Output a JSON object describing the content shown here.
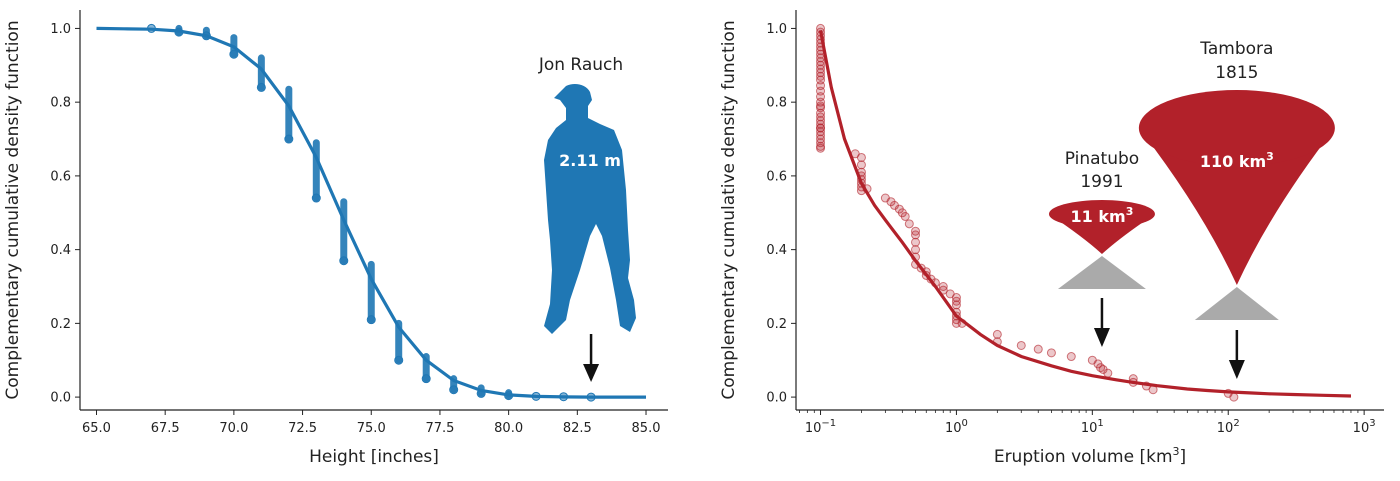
{
  "chart_data": [
    {
      "type": "scatter",
      "xlabel": "Height [inches]",
      "ylabel": "Complementary cumulative density function",
      "xlim": [
        64.4,
        85.8
      ],
      "ylim": [
        -0.035,
        1.05
      ],
      "x_ticks": [
        65,
        67.5,
        70,
        72.5,
        75,
        77.5,
        80,
        82.5,
        85
      ],
      "x_tick_labels": [
        "65.0",
        "67.5",
        "70.0",
        "72.5",
        "75.0",
        "77.5",
        "80.0",
        "82.5",
        "85.0"
      ],
      "y_ticks": [
        0,
        0.2,
        0.4,
        0.6,
        0.8,
        1.0
      ],
      "y_tick_labels": [
        "0.0",
        "0.2",
        "0.4",
        "0.6",
        "0.8",
        "1.0"
      ],
      "color": "#1f77b4",
      "series": [
        {
          "kind": "points",
          "x": [
            67,
            68,
            69,
            70,
            71,
            72,
            73,
            74,
            75,
            76,
            77,
            78,
            79,
            80,
            81,
            82,
            83
          ],
          "y_top": [
            1.0,
            1.0,
            0.995,
            0.975,
            0.92,
            0.835,
            0.69,
            0.53,
            0.36,
            0.2,
            0.11,
            0.05,
            0.025,
            0.012,
            0.006,
            0.003,
            0.0
          ],
          "y_bottom": [
            1.0,
            0.99,
            0.98,
            0.93,
            0.84,
            0.7,
            0.54,
            0.37,
            0.21,
            0.1,
            0.05,
            0.02,
            0.01,
            0.004,
            0.002,
            0.001,
            0.0
          ]
        },
        {
          "kind": "fit_curve",
          "x": [
            65,
            66,
            67,
            68,
            69,
            70,
            71,
            72,
            73,
            74,
            75,
            76,
            77,
            78,
            79,
            80,
            81,
            82,
            83,
            84,
            85
          ],
          "y": [
            1.0,
            0.999,
            0.998,
            0.993,
            0.98,
            0.95,
            0.89,
            0.79,
            0.65,
            0.48,
            0.32,
            0.19,
            0.1,
            0.045,
            0.018,
            0.006,
            0.002,
            0.0005,
            0.0001,
            0.0,
            0.0
          ]
        }
      ],
      "annotations": [
        {
          "text": "Jon Rauch",
          "kind": "silhouette-label"
        },
        {
          "text": "2.11 m",
          "kind": "silhouette-inner"
        },
        {
          "kind": "arrow",
          "x": 83
        }
      ]
    },
    {
      "type": "scatter",
      "xscale": "log",
      "xlabel": "Eruption volume [km",
      "xlabel_sup": "3",
      "xlabel_end": "]",
      "ylabel": "Complementary cumulative density function",
      "xlim": [
        0.066,
        1400
      ],
      "ylim": [
        -0.035,
        1.05
      ],
      "x_ticks": [
        0.1,
        1,
        10,
        100,
        1000
      ],
      "x_tick_labels": [
        {
          "base": "10",
          "exp": "−1"
        },
        {
          "base": "10",
          "exp": "0"
        },
        {
          "base": "10",
          "exp": "1"
        },
        {
          "base": "10",
          "exp": "2"
        },
        {
          "base": "10",
          "exp": "3"
        }
      ],
      "y_ticks": [
        0,
        0.2,
        0.4,
        0.6,
        0.8,
        1.0
      ],
      "y_tick_labels": [
        "0.0",
        "0.2",
        "0.4",
        "0.6",
        "0.8",
        "1.0"
      ],
      "color": "#b2212a",
      "series": [
        {
          "kind": "points",
          "x": [
            0.1,
            0.1,
            0.1,
            0.1,
            0.1,
            0.1,
            0.1,
            0.1,
            0.1,
            0.1,
            0.1,
            0.1,
            0.1,
            0.1,
            0.1,
            0.1,
            0.1,
            0.1,
            0.1,
            0.1,
            0.1,
            0.1,
            0.1,
            0.1,
            0.1,
            0.1,
            0.1,
            0.1,
            0.1,
            0.1,
            0.1,
            0.1,
            0.1,
            0.18,
            0.2,
            0.2,
            0.2,
            0.2,
            0.2,
            0.2,
            0.2,
            0.2,
            0.22,
            0.3,
            0.33,
            0.35,
            0.38,
            0.4,
            0.42,
            0.45,
            0.5,
            0.5,
            0.5,
            0.5,
            0.5,
            0.5,
            0.55,
            0.6,
            0.6,
            0.65,
            0.7,
            0.8,
            0.8,
            0.9,
            1.0,
            1.0,
            1.0,
            1.0,
            1.0,
            1.0,
            1.0,
            1.1,
            2.0,
            2.0,
            3.0,
            4.0,
            5.0,
            7.0,
            10.0,
            11.0,
            11.5,
            12.0,
            13.0,
            20.0,
            20.0,
            25.0,
            28.0,
            100.0,
            110.0
          ],
          "y": [
            1.0,
            0.98,
            0.96,
            0.94,
            0.92,
            0.9,
            0.88,
            0.86,
            0.845,
            0.83,
            0.815,
            0.8,
            0.785,
            0.77,
            0.76,
            0.75,
            0.74,
            0.73,
            0.72,
            0.71,
            0.7,
            0.69,
            0.68,
            0.675,
            0.99,
            0.97,
            0.95,
            0.93,
            0.91,
            0.89,
            0.87,
            0.79,
            0.73,
            0.66,
            0.65,
            0.63,
            0.61,
            0.6,
            0.59,
            0.58,
            0.57,
            0.56,
            0.565,
            0.54,
            0.53,
            0.52,
            0.51,
            0.5,
            0.49,
            0.47,
            0.45,
            0.44,
            0.42,
            0.4,
            0.38,
            0.36,
            0.35,
            0.34,
            0.33,
            0.32,
            0.31,
            0.3,
            0.29,
            0.28,
            0.27,
            0.26,
            0.25,
            0.23,
            0.22,
            0.21,
            0.2,
            0.2,
            0.17,
            0.15,
            0.14,
            0.13,
            0.12,
            0.11,
            0.1,
            0.09,
            0.08,
            0.075,
            0.065,
            0.05,
            0.04,
            0.03,
            0.02,
            0.01,
            0.0
          ]
        },
        {
          "kind": "fit_curve",
          "x": [
            0.1,
            0.12,
            0.15,
            0.2,
            0.25,
            0.3,
            0.4,
            0.5,
            0.7,
            1.0,
            1.5,
            2,
            3,
            5,
            7,
            10,
            15,
            20,
            30,
            50,
            70,
            100,
            150,
            200,
            300,
            500,
            800
          ],
          "y": [
            0.995,
            0.84,
            0.7,
            0.58,
            0.52,
            0.48,
            0.42,
            0.37,
            0.3,
            0.22,
            0.17,
            0.14,
            0.11,
            0.085,
            0.07,
            0.058,
            0.047,
            0.04,
            0.031,
            0.022,
            0.018,
            0.014,
            0.011,
            0.009,
            0.007,
            0.005,
            0.003
          ]
        }
      ],
      "annotations": [
        {
          "text_line1": "Pinatubo",
          "text_line2": "1991",
          "inner": "11 km",
          "inner_sup": "3",
          "x": 11
        },
        {
          "text_line1": "Tambora",
          "text_line2": "1815",
          "inner": "110 km",
          "inner_sup": "3",
          "x": 110
        }
      ]
    }
  ]
}
